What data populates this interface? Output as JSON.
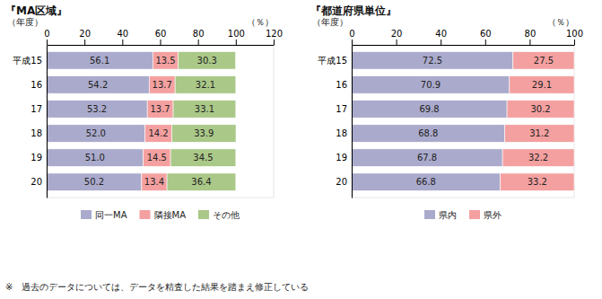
{
  "chart_data": [
    {
      "type": "bar",
      "title": "『MA区域』",
      "orientation": "horizontal",
      "stacked": true,
      "data_labels": true,
      "grid": false,
      "legend": "bottom",
      "xlabel": "（％）",
      "ylabel": "（年度）",
      "categories": [
        "平成15",
        "16",
        "17",
        "18",
        "19",
        "20"
      ],
      "xlim": [
        0,
        120
      ],
      "xticks": [
        0,
        20,
        40,
        60,
        80,
        100,
        120
      ],
      "series": [
        {
          "name": "同一MA",
          "color": "#aaaacc",
          "values": [
            56.1,
            54.2,
            53.2,
            52.0,
            51.0,
            50.2
          ],
          "value_labels": [
            "56.1",
            "54.2",
            "53.2",
            "52.0",
            "51.0",
            "50.2"
          ]
        },
        {
          "name": "隣接MA",
          "color": "#f4a0a0",
          "values": [
            13.5,
            13.7,
            13.7,
            14.2,
            14.5,
            13.4
          ]
        },
        {
          "name": "その他",
          "color": "#aac888",
          "values": [
            30.3,
            32.1,
            33.1,
            33.9,
            34.5,
            36.4
          ]
        }
      ],
      "annotations": [
        "※　過去のデータについては、データを精査した結果を踏まえ修正している"
      ]
    },
    {
      "type": "bar",
      "title": "『都道府県単位』",
      "orientation": "horizontal",
      "stacked": true,
      "data_labels": true,
      "grid": false,
      "legend": "bottom",
      "xlabel": "（％）",
      "ylabel": "（年度）",
      "categories": [
        "平成15",
        "16",
        "17",
        "18",
        "19",
        "20"
      ],
      "xlim": [
        0,
        100
      ],
      "xticks": [
        0,
        20,
        40,
        60,
        80,
        100
      ],
      "series": [
        {
          "name": "県内",
          "color": "#aaaacc",
          "values": [
            72.5,
            70.9,
            69.8,
            68.8,
            67.8,
            66.8
          ]
        },
        {
          "name": "県外",
          "color": "#f4a0a0",
          "values": [
            27.5,
            29.1,
            30.2,
            31.2,
            32.2,
            33.2
          ]
        }
      ]
    }
  ]
}
